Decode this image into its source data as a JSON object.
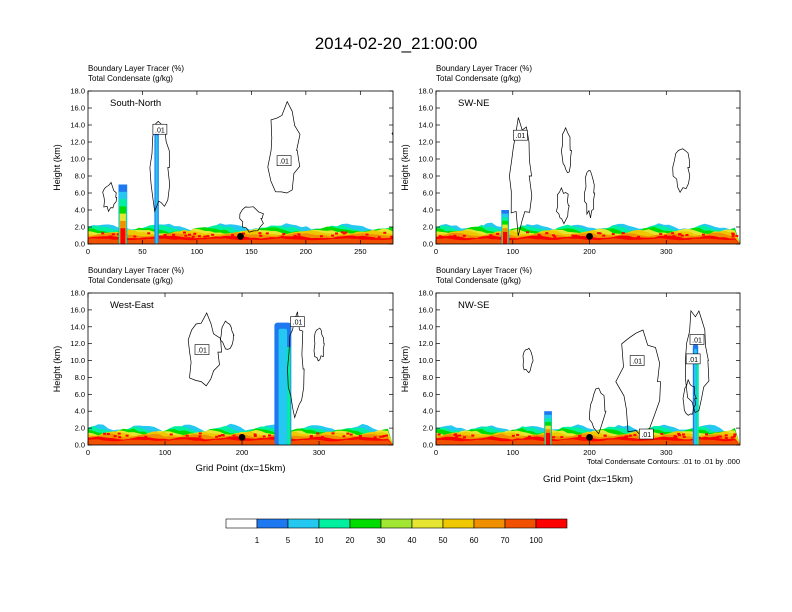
{
  "title": "2014-02-20_21:00:00",
  "footnote": "Total Condensate Contours: .01 to .01 by .000",
  "colorbar": {
    "labels": [
      "1",
      "5",
      "10",
      "20",
      "30",
      "40",
      "50",
      "60",
      "70",
      "100"
    ],
    "colors": [
      "#ffffff",
      "#1e78f0",
      "#24c8f0",
      "#00f0a0",
      "#00dc00",
      "#a0e632",
      "#e6e632",
      "#f0c800",
      "#f09000",
      "#f05000",
      "#ff0000"
    ]
  },
  "chart_data": [
    {
      "type": "heatmap",
      "name": "South-North",
      "header": [
        "Boundary Layer Tracer   (%)",
        "Total Condensate   (g/kg)"
      ],
      "ylabel": "Height (km)",
      "xlabel": "",
      "xlim": [
        0,
        280
      ],
      "ylim": [
        0,
        18
      ],
      "xticks": [
        0,
        50,
        100,
        150,
        200,
        250
      ],
      "yticks": [
        "0.0",
        "2.0",
        "4.0",
        "6.0",
        "8.0",
        "10.0",
        "12.0",
        "14.0",
        "16.0",
        "18.0"
      ],
      "contour_labels": [
        {
          "x": 66,
          "y": 13.5,
          "text": ".01"
        },
        {
          "x": 180,
          "y": 9.8,
          "text": ".01"
        }
      ],
      "marker_x": 140,
      "tower": {
        "x": 63,
        "width": 4,
        "top": 13.5
      },
      "tracer_columns": [
        {
          "x": 32,
          "width": 8,
          "top": 7
        }
      ]
    },
    {
      "type": "heatmap",
      "name": "SW-NE",
      "header": [
        "Boundary Layer Tracer   (%)",
        "Total Condensate   (g/kg)"
      ],
      "ylabel": "Height (km)",
      "xlabel": "",
      "xlim": [
        0,
        396
      ],
      "ylim": [
        0,
        18
      ],
      "xticks": [
        0,
        100,
        200,
        300
      ],
      "yticks": [
        "0.0",
        "2.0",
        "4.0",
        "6.0",
        "8.0",
        "10.0",
        "12.0",
        "14.0",
        "16.0",
        "18.0"
      ],
      "contour_labels": [
        {
          "x": 110,
          "y": 12.8,
          "text": ".01"
        }
      ],
      "marker_x": 200,
      "tower": null,
      "tracer_columns": [
        {
          "x": 90,
          "width": 10,
          "top": 4
        }
      ]
    },
    {
      "type": "heatmap",
      "name": "West-East",
      "header": [
        "Boundary Layer Tracer   (%)",
        "Total Condensate   (g/kg)"
      ],
      "ylabel": "Height (km)",
      "xlabel": "Grid Point (dx=15km)",
      "xlim": [
        0,
        396
      ],
      "ylim": [
        0,
        18
      ],
      "xticks": [
        0,
        100,
        200,
        300
      ],
      "yticks": [
        "0.0",
        "2.0",
        "4.0",
        "6.0",
        "8.0",
        "10.0",
        "12.0",
        "14.0",
        "16.0",
        "18.0"
      ],
      "contour_labels": [
        {
          "x": 148,
          "y": 11.3,
          "text": ".01"
        },
        {
          "x": 272,
          "y": 14.6,
          "text": ".01"
        }
      ],
      "marker_x": 200,
      "tower": {
        "x": 253,
        "width": 22,
        "top": 14.5
      },
      "tracer_columns": []
    },
    {
      "type": "heatmap",
      "name": "NW-SE",
      "header": [
        "Boundary Layer Tracer   (%)",
        "Total Condensate   (g/kg)"
      ],
      "ylabel": "Height (km)",
      "xlabel": "Grid Point (dx=15km)",
      "xlim": [
        0,
        396
      ],
      "ylim": [
        0,
        18
      ],
      "xticks": [
        0,
        100,
        200,
        300
      ],
      "yticks": [
        "0.0",
        "2.0",
        "4.0",
        "6.0",
        "8.0",
        "10.0",
        "12.0",
        "14.0",
        "16.0",
        "18.0"
      ],
      "contour_labels": [
        {
          "x": 262,
          "y": 10,
          "text": ".01"
        },
        {
          "x": 340,
          "y": 12.5,
          "text": ".01"
        },
        {
          "x": 335,
          "y": 10.2,
          "text": ".01"
        },
        {
          "x": 274,
          "y": 1.3,
          "text": ".01"
        }
      ],
      "marker_x": 200,
      "tower": {
        "x": 338,
        "width": 7,
        "top": 12
      },
      "tracer_columns": [
        {
          "x": 146,
          "width": 10,
          "top": 4
        }
      ]
    }
  ]
}
